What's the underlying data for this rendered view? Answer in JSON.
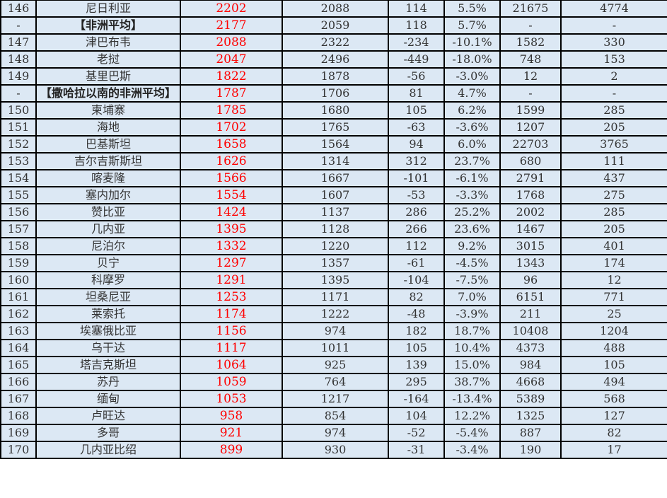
{
  "colors": {
    "highlight": "#ff0000",
    "cell_background": "#dce8f4",
    "border": "#000000"
  },
  "rows": [
    [
      "146",
      "尼日利亚",
      "2202",
      "2088",
      "114",
      "5.5%",
      "21675",
      "4774"
    ],
    [
      "-",
      "【非洲平均】",
      "2177",
      "2059",
      "118",
      "5.7%",
      "-",
      "-"
    ],
    [
      "147",
      "津巴布韦",
      "2088",
      "2322",
      "-234",
      "-10.1%",
      "1582",
      "330"
    ],
    [
      "148",
      "老挝",
      "2047",
      "2496",
      "-449",
      "-18.0%",
      "748",
      "153"
    ],
    [
      "149",
      "基里巴斯",
      "1822",
      "1878",
      "-56",
      "-3.0%",
      "12",
      "2"
    ],
    [
      "-",
      "【撒哈拉以南的非洲平均】",
      "1787",
      "1706",
      "81",
      "4.7%",
      "-",
      "-"
    ],
    [
      "150",
      "柬埔寨",
      "1785",
      "1680",
      "105",
      "6.2%",
      "1599",
      "285"
    ],
    [
      "151",
      "海地",
      "1702",
      "1765",
      "-63",
      "-3.6%",
      "1207",
      "205"
    ],
    [
      "152",
      "巴基斯坦",
      "1658",
      "1564",
      "94",
      "6.0%",
      "22703",
      "3765"
    ],
    [
      "153",
      "吉尔吉斯斯坦",
      "1626",
      "1314",
      "312",
      "23.7%",
      "680",
      "111"
    ],
    [
      "154",
      "喀麦隆",
      "1566",
      "1667",
      "-101",
      "-6.1%",
      "2791",
      "437"
    ],
    [
      "155",
      "塞内加尔",
      "1554",
      "1607",
      "-53",
      "-3.3%",
      "1768",
      "275"
    ],
    [
      "156",
      "赞比亚",
      "1424",
      "1137",
      "286",
      "25.2%",
      "2002",
      "285"
    ],
    [
      "157",
      "几内亚",
      "1395",
      "1128",
      "266",
      "23.6%",
      "1467",
      "205"
    ],
    [
      "158",
      "尼泊尔",
      "1332",
      "1220",
      "112",
      "9.2%",
      "3015",
      "401"
    ],
    [
      "159",
      "贝宁",
      "1297",
      "1357",
      "-61",
      "-4.5%",
      "1343",
      "174"
    ],
    [
      "160",
      "科摩罗",
      "1291",
      "1395",
      "-104",
      "-7.5%",
      "96",
      "12"
    ],
    [
      "161",
      "坦桑尼亚",
      "1253",
      "1171",
      "82",
      "7.0%",
      "6151",
      "771"
    ],
    [
      "162",
      "莱索托",
      "1174",
      "1222",
      "-48",
      "-3.9%",
      "211",
      "25"
    ],
    [
      "163",
      "埃塞俄比亚",
      "1156",
      "974",
      "182",
      "18.7%",
      "10408",
      "1204"
    ],
    [
      "164",
      "乌干达",
      "1117",
      "1011",
      "105",
      "10.4%",
      "4373",
      "488"
    ],
    [
      "165",
      "塔吉克斯坦",
      "1064",
      "925",
      "139",
      "15.0%",
      "984",
      "105"
    ],
    [
      "166",
      "苏丹",
      "1059",
      "764",
      "295",
      "38.7%",
      "4668",
      "494"
    ],
    [
      "167",
      "缅甸",
      "1053",
      "1217",
      "-164",
      "-13.4%",
      "5389",
      "568"
    ],
    [
      "168",
      "卢旺达",
      "958",
      "854",
      "104",
      "12.2%",
      "1325",
      "127"
    ],
    [
      "169",
      "多哥",
      "921",
      "974",
      "-52",
      "-5.4%",
      "887",
      "82"
    ],
    [
      "170",
      "几内亚比绍",
      "899",
      "930",
      "-31",
      "-3.4%",
      "190",
      "17"
    ]
  ]
}
